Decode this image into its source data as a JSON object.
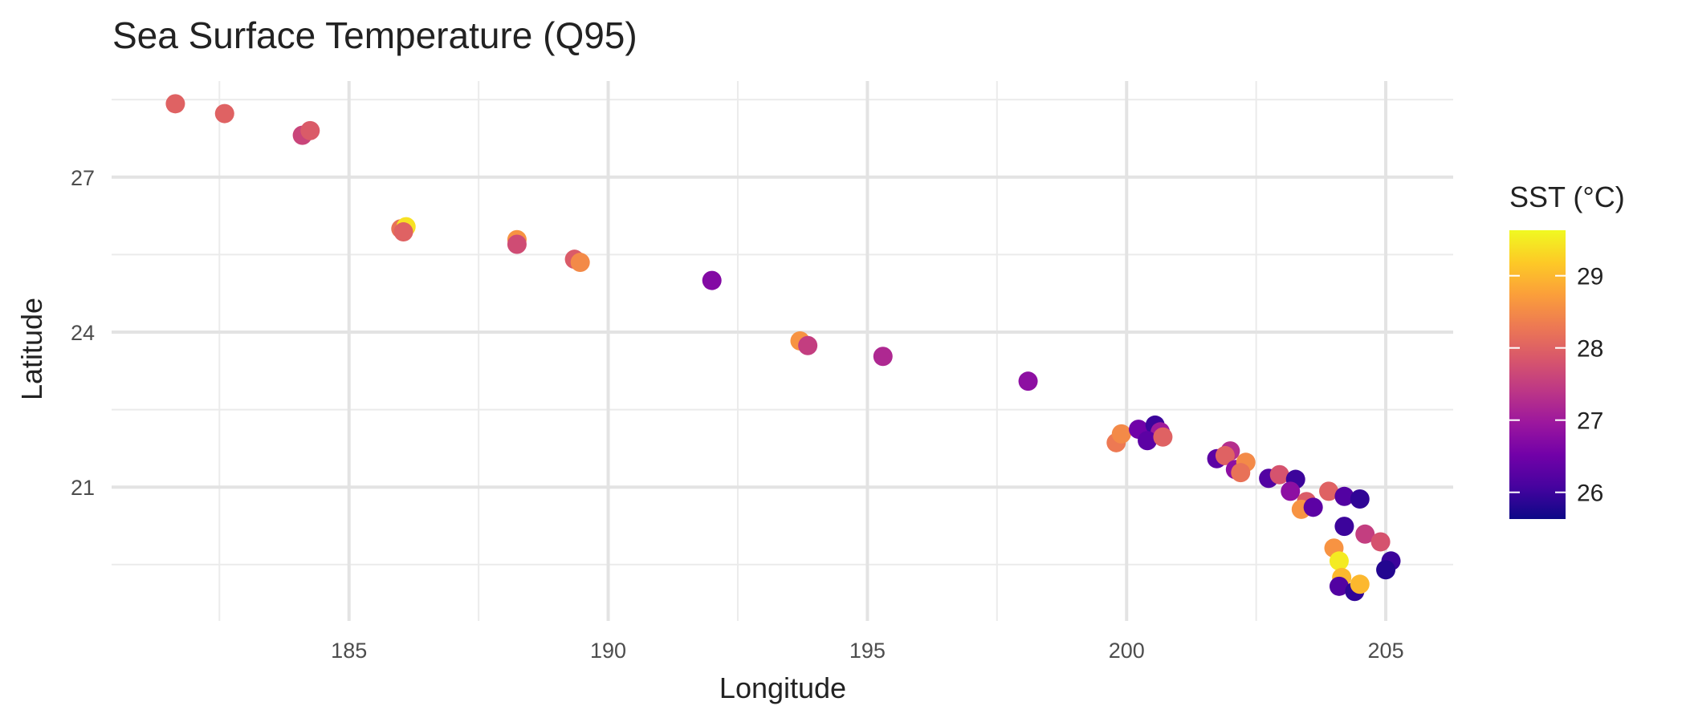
{
  "chart_data": {
    "type": "scatter",
    "title": "Sea Surface Temperature (Q95)",
    "x_label": "Longitude",
    "y_label": "Latitude",
    "legend_title": "SST (°C)",
    "x": [
      181.65,
      182.6,
      184.1,
      184.25,
      186.0,
      186.1,
      186.05,
      188.24,
      188.24,
      189.35,
      189.46,
      192.0,
      193.7,
      193.85,
      195.3,
      198.1,
      199.8,
      199.9,
      200.23,
      200.55,
      200.65,
      200.4,
      200.7,
      201.74,
      202.0,
      201.9,
      202.1,
      202.3,
      202.2,
      202.74,
      202.95,
      203.26,
      203.16,
      203.47,
      203.37,
      203.6,
      203.9,
      204.2,
      204.5,
      204.2,
      204.6,
      204.9,
      205.1,
      205.0,
      204.0,
      204.1,
      204.15,
      204.1,
      204.4,
      204.5
    ],
    "y": [
      28.42,
      28.23,
      27.81,
      27.9,
      26.0,
      26.04,
      25.94,
      25.79,
      25.7,
      25.41,
      25.35,
      25.0,
      23.83,
      23.74,
      23.53,
      23.05,
      21.86,
      22.03,
      22.12,
      22.2,
      22.07,
      21.9,
      21.97,
      21.55,
      21.7,
      21.61,
      21.34,
      21.48,
      21.28,
      21.17,
      21.24,
      21.15,
      20.92,
      20.72,
      20.57,
      20.61,
      20.92,
      20.82,
      20.77,
      20.24,
      20.09,
      19.94,
      19.57,
      19.4,
      19.82,
      19.57,
      19.25,
      19.08,
      18.98,
      19.12
    ],
    "color_values": [
      28.0,
      28.0,
      27.6,
      27.9,
      28.2,
      29.4,
      28.0,
      28.6,
      27.7,
      27.9,
      28.5,
      26.7,
      28.6,
      27.5,
      27.2,
      26.8,
      28.3,
      28.5,
      26.5,
      26.0,
      27.0,
      26.3,
      28.0,
      26.3,
      27.3,
      28.0,
      26.8,
      28.5,
      28.2,
      26.2,
      27.8,
      26.0,
      26.8,
      27.9,
      28.6,
      26.3,
      28.0,
      26.2,
      25.9,
      26.0,
      27.5,
      27.8,
      26.0,
      25.8,
      28.6,
      29.5,
      29.0,
      26.2,
      25.9,
      29.0
    ],
    "xlim": [
      180.42,
      206.3
    ],
    "ylim": [
      18.41,
      28.86
    ],
    "xticks": [
      185,
      190,
      195,
      200,
      205
    ],
    "yticks": [
      21,
      24,
      27
    ],
    "x_minor_ticks": [
      182.5,
      187.5,
      192.5,
      197.5,
      202.5
    ],
    "y_minor_ticks": [
      19.5,
      22.5,
      25.5,
      28.5
    ],
    "grid": true,
    "colorlim": [
      25.63,
      29.63
    ],
    "colorticks": [
      26,
      27,
      28,
      29
    ],
    "colormap": [
      "#0d0887",
      "#46039f",
      "#7201a8",
      "#9c179e",
      "#bd3786",
      "#d8576b",
      "#ed7953",
      "#fb9f3a",
      "#fdca26",
      "#f0f921"
    ]
  }
}
